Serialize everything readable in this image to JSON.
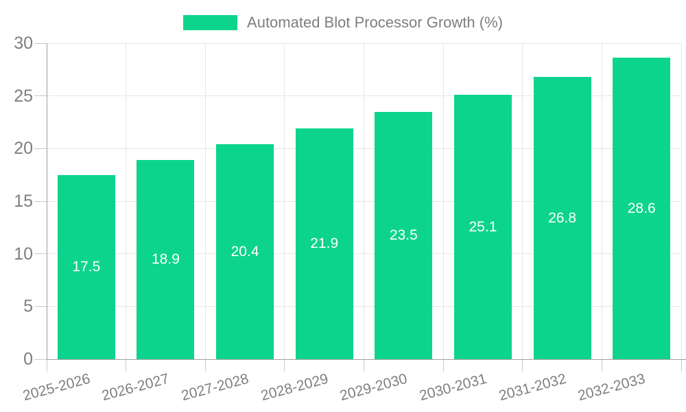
{
  "chart_data": {
    "type": "bar",
    "title": "Automated Blot Processor Growth (%)",
    "categories": [
      "2025-2026",
      "2026-2027",
      "2027-2028",
      "2028-2029",
      "2029-2030",
      "2030-2031",
      "2031-2032",
      "2032-2033"
    ],
    "values": [
      17.5,
      18.9,
      20.4,
      21.9,
      23.5,
      25.1,
      26.8,
      28.6
    ],
    "xlabel": "",
    "ylabel": "",
    "ylim": [
      0,
      30
    ],
    "yticks": [
      0,
      5,
      10,
      15,
      20,
      25,
      30
    ],
    "grid": true,
    "legend_position": "top",
    "value_labels": [
      "17.5",
      "18.9",
      "20.4",
      "21.9",
      "23.5",
      "25.1",
      "26.8",
      "28.6"
    ],
    "colors": {
      "bar": "#0dd48c",
      "value_label": "#ffffff",
      "axis_text": "#7e7e7e",
      "axis_line": "#9e9e9e",
      "tick": "#c9c9c9",
      "gridline": "#e6e6e6",
      "background": "#ffffff"
    }
  }
}
